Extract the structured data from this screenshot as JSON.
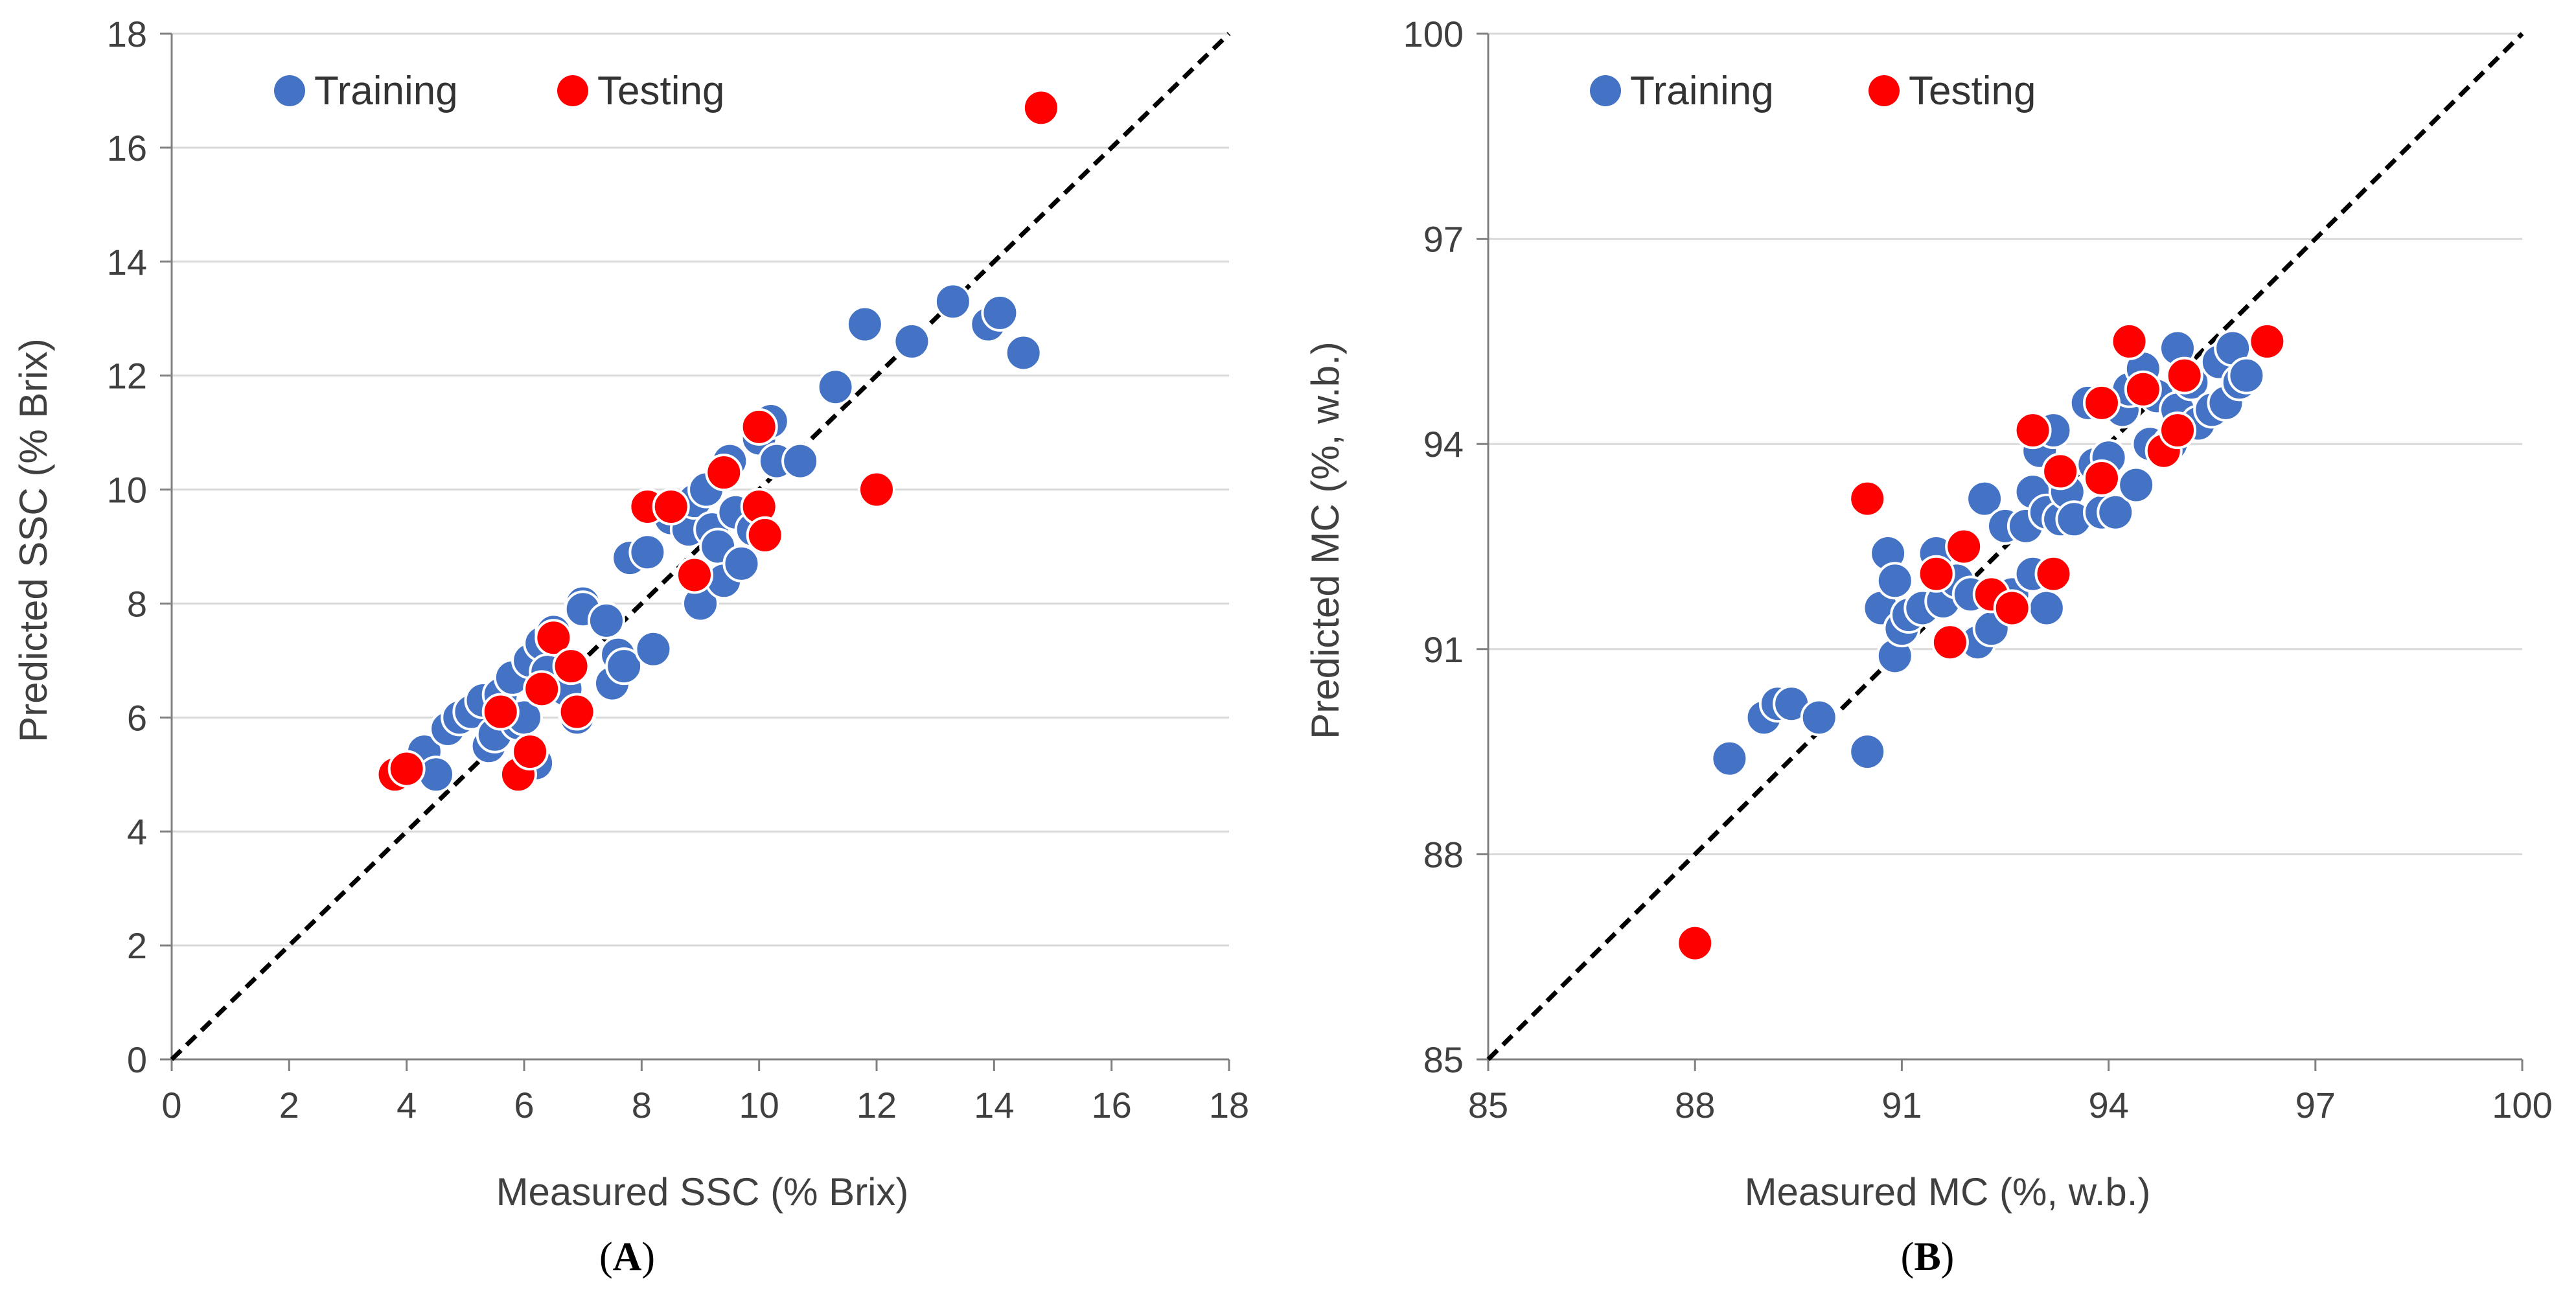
{
  "colors": {
    "training": "#4472C4",
    "testing": "#FF0000",
    "marker_stroke": "#ffffff",
    "gridline": "#D9D9D9",
    "axis": "#808080",
    "reference_line": "#000000"
  },
  "chart_data": [
    {
      "panel_label": "A",
      "type": "scatter",
      "xlabel": "Measured SSC (% Brix)",
      "ylabel": "Predicted SSC (% Brix)",
      "xlim": [
        0,
        18
      ],
      "ylim": [
        0,
        18
      ],
      "xticks": [
        0,
        2,
        4,
        6,
        8,
        10,
        12,
        14,
        16,
        18
      ],
      "yticks": [
        0,
        2,
        4,
        6,
        8,
        10,
        12,
        14,
        16,
        18
      ],
      "x_tick_labels": [
        "0",
        "2",
        "4",
        "6",
        "8",
        "10",
        "12",
        "14",
        "16",
        "18"
      ],
      "y_tick_labels": [
        "0",
        "2",
        "4",
        "6",
        "8",
        "10",
        "12",
        "14",
        "16",
        "18"
      ],
      "grid": "horizontal",
      "legend_position": "top-left",
      "reference_line": "1:1 dashed",
      "series": [
        {
          "name": "Training",
          "color": "#4472C4",
          "points": [
            [
              4.0,
              5.1
            ],
            [
              4.3,
              5.4
            ],
            [
              4.5,
              5.0
            ],
            [
              4.7,
              5.8
            ],
            [
              4.9,
              6.0
            ],
            [
              5.1,
              6.1
            ],
            [
              5.3,
              6.3
            ],
            [
              5.4,
              5.5
            ],
            [
              5.5,
              5.7
            ],
            [
              5.6,
              6.4
            ],
            [
              5.8,
              6.7
            ],
            [
              5.9,
              5.9
            ],
            [
              6.0,
              6.0
            ],
            [
              6.1,
              7.0
            ],
            [
              6.2,
              5.2
            ],
            [
              6.3,
              7.3
            ],
            [
              6.4,
              6.8
            ],
            [
              6.5,
              7.5
            ],
            [
              6.7,
              6.5
            ],
            [
              6.9,
              6.0
            ],
            [
              7.0,
              8.0
            ],
            [
              7.0,
              7.9
            ],
            [
              7.4,
              7.7
            ],
            [
              7.5,
              6.6
            ],
            [
              7.6,
              7.1
            ],
            [
              7.7,
              6.9
            ],
            [
              7.8,
              8.8
            ],
            [
              8.1,
              8.9
            ],
            [
              8.2,
              7.2
            ],
            [
              8.5,
              9.5
            ],
            [
              8.8,
              9.3
            ],
            [
              8.9,
              9.8
            ],
            [
              9.0,
              8.0
            ],
            [
              9.1,
              10.0
            ],
            [
              9.2,
              9.3
            ],
            [
              9.3,
              9.0
            ],
            [
              9.4,
              8.4
            ],
            [
              9.5,
              10.5
            ],
            [
              9.6,
              9.6
            ],
            [
              9.7,
              8.7
            ],
            [
              9.9,
              9.3
            ],
            [
              10.0,
              10.9
            ],
            [
              10.2,
              11.2
            ],
            [
              10.3,
              10.5
            ],
            [
              10.7,
              10.5
            ],
            [
              11.3,
              11.8
            ],
            [
              11.8,
              12.9
            ],
            [
              12.6,
              12.6
            ],
            [
              13.3,
              13.3
            ],
            [
              13.9,
              12.9
            ],
            [
              14.1,
              13.1
            ],
            [
              14.5,
              12.4
            ]
          ]
        },
        {
          "name": "Testing",
          "color": "#FF0000",
          "points": [
            [
              3.8,
              5.0
            ],
            [
              4.0,
              5.1
            ],
            [
              5.6,
              6.1
            ],
            [
              5.9,
              5.0
            ],
            [
              6.1,
              5.4
            ],
            [
              6.3,
              6.5
            ],
            [
              6.5,
              7.4
            ],
            [
              6.8,
              6.9
            ],
            [
              6.9,
              6.1
            ],
            [
              8.1,
              9.7
            ],
            [
              8.5,
              9.7
            ],
            [
              8.9,
              8.5
            ],
            [
              9.4,
              10.3
            ],
            [
              10.0,
              11.1
            ],
            [
              10.0,
              9.7
            ],
            [
              10.1,
              9.2
            ],
            [
              12.0,
              10.0
            ],
            [
              14.8,
              16.7
            ]
          ]
        }
      ]
    },
    {
      "panel_label": "B",
      "type": "scatter",
      "xlabel": "Measured MC (%, w.b.)",
      "ylabel": "Predicted MC (%, w.b.)",
      "xlim": [
        85,
        100
      ],
      "ylim": [
        85,
        100
      ],
      "xticks": [
        85,
        88,
        91,
        94,
        97,
        100
      ],
      "yticks": [
        85,
        88,
        91,
        94,
        97,
        100
      ],
      "x_tick_labels": [
        "85",
        "88",
        "91",
        "94",
        "97",
        "100"
      ],
      "y_tick_labels": [
        "85",
        "88",
        "91",
        "94",
        "97",
        "100"
      ],
      "grid": "horizontal",
      "legend_position": "top-left",
      "reference_line": "1:1 dashed",
      "series": [
        {
          "name": "Training",
          "color": "#4472C4",
          "points": [
            [
              88.5,
              89.4
            ],
            [
              89.0,
              90.0
            ],
            [
              89.2,
              90.2
            ],
            [
              89.4,
              90.2
            ],
            [
              89.8,
              90.0
            ],
            [
              90.5,
              89.5
            ],
            [
              90.7,
              91.6
            ],
            [
              90.8,
              92.4
            ],
            [
              90.9,
              90.9
            ],
            [
              90.9,
              92.0
            ],
            [
              91.0,
              91.3
            ],
            [
              91.1,
              91.5
            ],
            [
              91.3,
              91.6
            ],
            [
              91.5,
              92.4
            ],
            [
              91.6,
              91.7
            ],
            [
              91.8,
              92.0
            ],
            [
              92.0,
              91.8
            ],
            [
              92.1,
              91.1
            ],
            [
              92.2,
              93.2
            ],
            [
              92.3,
              91.3
            ],
            [
              92.5,
              92.8
            ],
            [
              92.6,
              91.8
            ],
            [
              92.8,
              92.8
            ],
            [
              92.9,
              93.3
            ],
            [
              92.9,
              92.1
            ],
            [
              93.0,
              93.9
            ],
            [
              93.1,
              91.6
            ],
            [
              93.1,
              93.0
            ],
            [
              93.2,
              94.2
            ],
            [
              93.3,
              92.9
            ],
            [
              93.4,
              93.3
            ],
            [
              93.5,
              92.9
            ],
            [
              93.7,
              94.6
            ],
            [
              93.8,
              93.7
            ],
            [
              93.9,
              93.0
            ],
            [
              94.0,
              93.8
            ],
            [
              94.1,
              93.0
            ],
            [
              94.2,
              94.5
            ],
            [
              94.3,
              94.8
            ],
            [
              94.4,
              93.4
            ],
            [
              94.5,
              95.1
            ],
            [
              94.6,
              94.0
            ],
            [
              94.7,
              94.7
            ],
            [
              94.9,
              94.0
            ],
            [
              95.0,
              95.4
            ],
            [
              95.0,
              94.5
            ],
            [
              95.2,
              94.9
            ],
            [
              95.3,
              94.3
            ],
            [
              95.5,
              94.5
            ],
            [
              95.6,
              95.2
            ],
            [
              95.7,
              94.6
            ],
            [
              95.8,
              95.4
            ],
            [
              95.9,
              94.9
            ],
            [
              96.0,
              95.0
            ]
          ]
        },
        {
          "name": "Testing",
          "color": "#FF0000",
          "points": [
            [
              88.0,
              86.7
            ],
            [
              90.5,
              93.2
            ],
            [
              91.5,
              92.1
            ],
            [
              91.7,
              91.1
            ],
            [
              91.9,
              92.5
            ],
            [
              92.3,
              91.8
            ],
            [
              92.6,
              91.6
            ],
            [
              92.9,
              94.2
            ],
            [
              93.2,
              92.1
            ],
            [
              93.3,
              93.6
            ],
            [
              93.9,
              94.6
            ],
            [
              93.9,
              93.5
            ],
            [
              94.3,
              95.5
            ],
            [
              94.5,
              94.8
            ],
            [
              94.8,
              93.9
            ],
            [
              95.0,
              94.2
            ],
            [
              95.1,
              95.0
            ],
            [
              96.3,
              95.5
            ]
          ]
        }
      ]
    }
  ]
}
